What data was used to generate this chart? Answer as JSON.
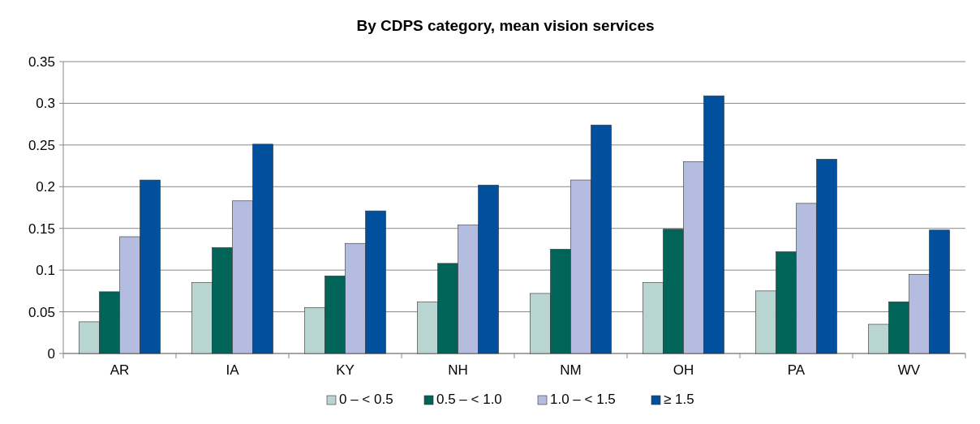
{
  "chart_data": {
    "type": "bar",
    "title": "By CDPS category, mean vision services",
    "categories": [
      "AR",
      "IA",
      "KY",
      "NH",
      "NM",
      "OH",
      "PA",
      "WV"
    ],
    "series": [
      {
        "name": "0 – < 0.5",
        "color": "#b9d5d1",
        "values": [
          0.038,
          0.085,
          0.055,
          0.062,
          0.072,
          0.085,
          0.075,
          0.035
        ]
      },
      {
        "name": "0.5 – < 1.0",
        "color": "#006458",
        "values": [
          0.074,
          0.127,
          0.093,
          0.108,
          0.125,
          0.149,
          0.122,
          0.062
        ]
      },
      {
        "name": "1.0 – < 1.5",
        "color": "#b4bde0",
        "values": [
          0.14,
          0.183,
          0.132,
          0.154,
          0.208,
          0.23,
          0.18,
          0.095
        ]
      },
      {
        "name": "≥ 1.5",
        "color": "#00509d",
        "values": [
          0.208,
          0.251,
          0.171,
          0.202,
          0.274,
          0.309,
          0.233,
          0.148
        ]
      }
    ],
    "ylim": [
      0,
      0.35
    ],
    "yticks": [
      0,
      0.05,
      0.1,
      0.15,
      0.2,
      0.25,
      0.3,
      0.35
    ],
    "grid": "y",
    "legend": "bottom"
  }
}
